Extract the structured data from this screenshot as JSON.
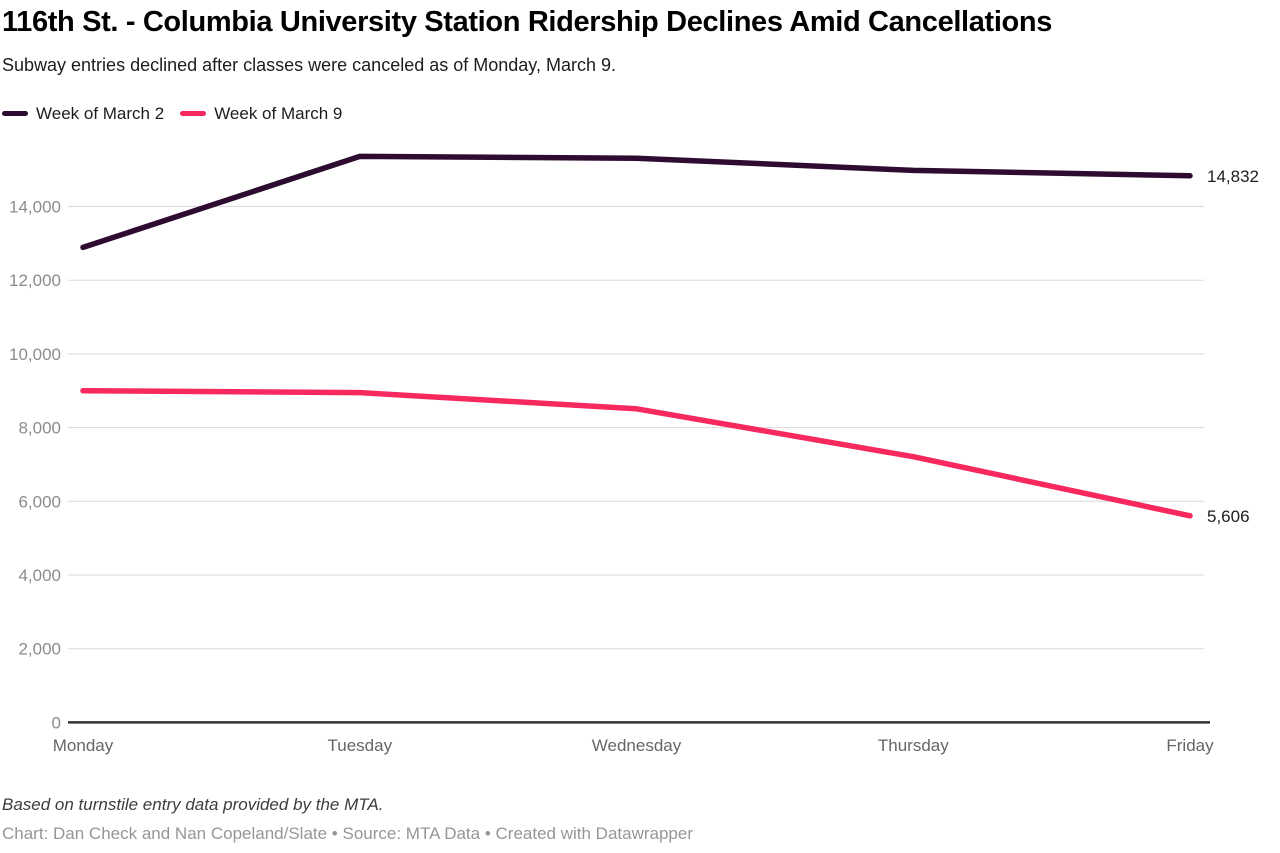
{
  "header": {
    "title": "116th St. - Columbia University Station Ridership Declines Amid Cancellations",
    "subtitle": "Subway entries declined after classes were canceled as of Monday, March 9."
  },
  "chart_data": {
    "type": "line",
    "categories": [
      "Monday",
      "Tuesday",
      "Wednesday",
      "Thursday",
      "Friday"
    ],
    "series": [
      {
        "name": "Week of March 2",
        "color": "#2e0c31",
        "values": [
          12890,
          15360,
          15310,
          14980,
          14832
        ],
        "end_label": "14,832"
      },
      {
        "name": "Week of March 9",
        "color": "#f7295f",
        "values": [
          9000,
          8950,
          8510,
          7210,
          5606
        ],
        "end_label": "5,606"
      }
    ],
    "ylim": [
      0,
      15500
    ],
    "yticks": [
      0,
      2000,
      4000,
      6000,
      8000,
      10000,
      12000,
      14000
    ],
    "ytick_labels": [
      "0",
      "2,000",
      "4,000",
      "6,000",
      "8,000",
      "10,000",
      "12,000",
      "14,000"
    ],
    "grid": "horizontal",
    "legend_position": "top",
    "xlabel": "",
    "ylabel": ""
  },
  "footer": {
    "note": "Based on turnstile entry data provided by the MTA.",
    "byline": "Chart: Dan Check and Nan Copeland/Slate • Source: MTA Data • Created with Datawrapper"
  }
}
